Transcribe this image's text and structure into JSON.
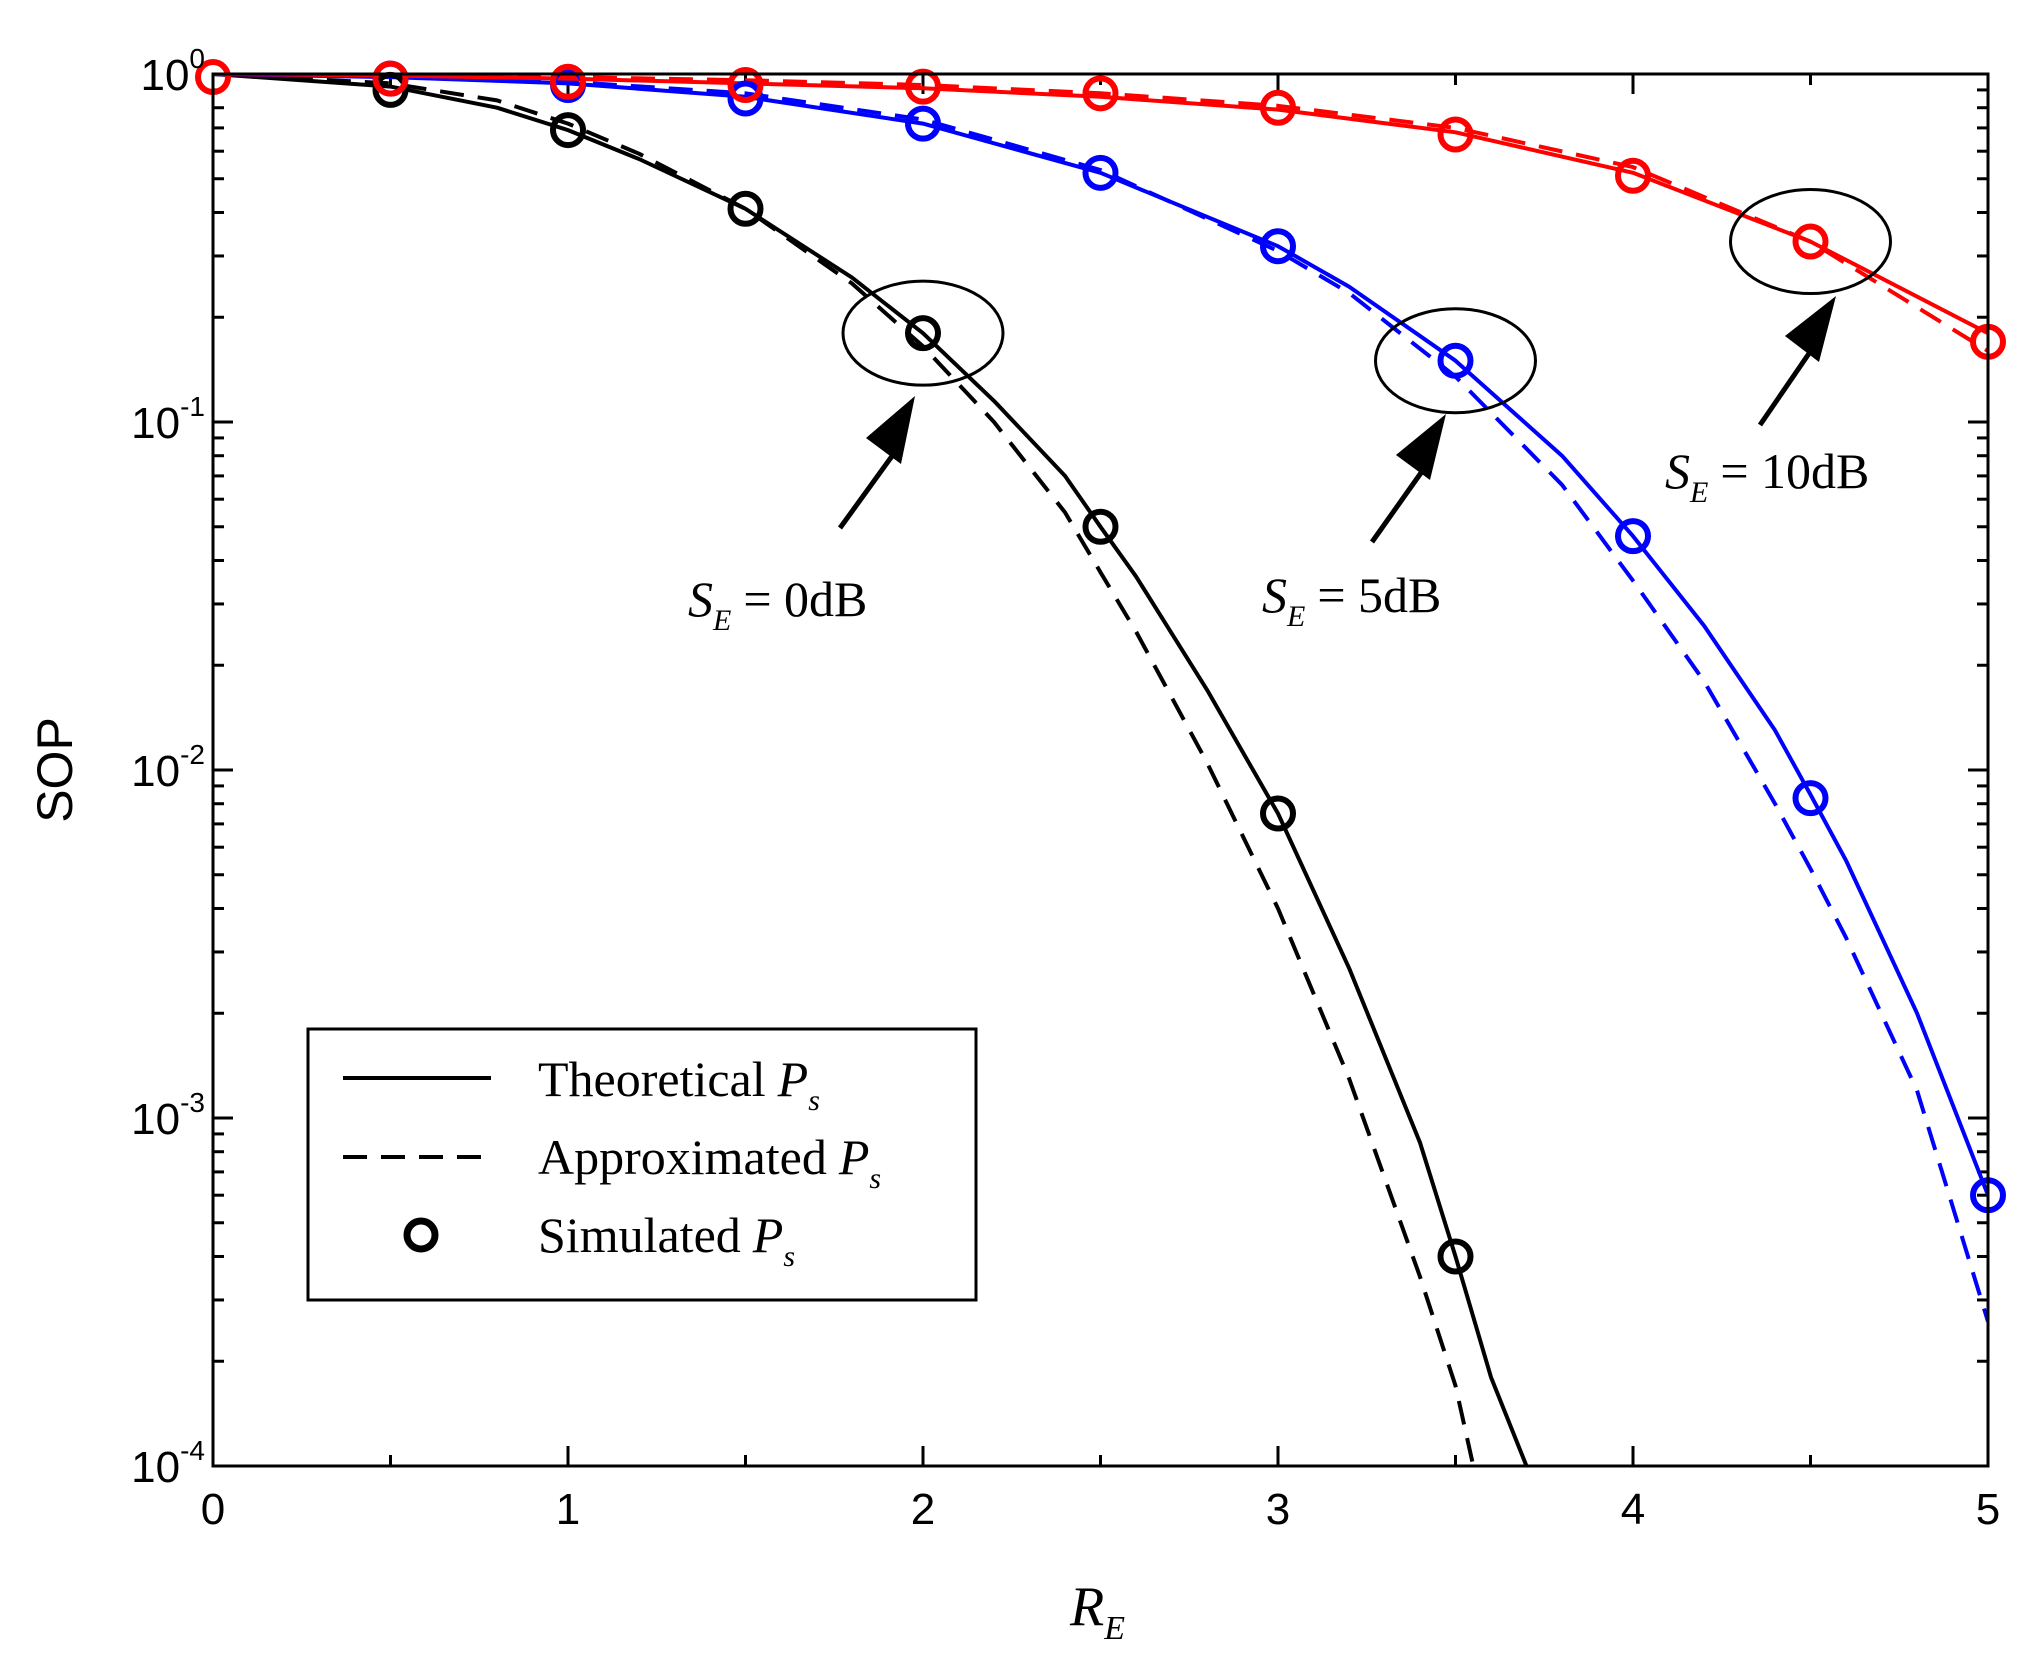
{
  "chart_data": {
    "type": "line",
    "title": "",
    "xlabel": {
      "main": "R",
      "sub": "E"
    },
    "ylabel": "SOP",
    "xlim": [
      0,
      5
    ],
    "ylim": [
      0.0001,
      1
    ],
    "yscale": "log",
    "x_ticks": [
      "0",
      "1",
      "2",
      "3",
      "4",
      "5"
    ],
    "y_ticks": [
      {
        "base": "10",
        "exp": "0",
        "value": 1
      },
      {
        "base": "10",
        "exp": "-1",
        "value": 0.1
      },
      {
        "base": "10",
        "exp": "-2",
        "value": 0.01
      },
      {
        "base": "10",
        "exp": "-3",
        "value": 0.001
      },
      {
        "base": "10",
        "exp": "-4",
        "value": 0.0001
      }
    ],
    "colors": {
      "se0": "#000000",
      "se5": "#0000ff",
      "se10": "#ff0000"
    },
    "series": [
      {
        "name": "Theoretical S_E=0dB",
        "group": "se0",
        "style": "solid",
        "x": [
          0,
          0.5,
          0.8,
          1,
          1.2,
          1.5,
          1.8,
          2,
          2.2,
          2.4,
          2.5,
          2.6,
          2.8,
          3,
          3.2,
          3.4,
          3.5,
          3.6,
          3.7
        ],
        "y": [
          1,
          0.92,
          0.8,
          0.69,
          0.57,
          0.41,
          0.26,
          0.18,
          0.115,
          0.07,
          0.05,
          0.036,
          0.017,
          0.0075,
          0.0027,
          0.00085,
          0.0004,
          0.00018,
          0.0001
        ]
      },
      {
        "name": "Approximated S_E=0dB",
        "group": "se0",
        "style": "dashed",
        "x": [
          0,
          0.5,
          0.8,
          1,
          1.2,
          1.5,
          1.8,
          2,
          2.2,
          2.4,
          2.5,
          2.6,
          2.8,
          3,
          3.2,
          3.4,
          3.5,
          3.55
        ],
        "y": [
          1,
          0.94,
          0.84,
          0.72,
          0.59,
          0.41,
          0.25,
          0.165,
          0.1,
          0.055,
          0.037,
          0.025,
          0.0105,
          0.004,
          0.0013,
          0.00035,
          0.00017,
          0.0001
        ]
      },
      {
        "name": "Simulated S_E=0dB",
        "group": "se0",
        "style": "marker",
        "x": [
          0.5,
          1,
          1.5,
          2,
          2.5,
          3,
          3.5
        ],
        "y": [
          0.9,
          0.69,
          0.41,
          0.18,
          0.05,
          0.0075,
          0.0004
        ]
      },
      {
        "name": "Theoretical S_E=5dB",
        "group": "se5",
        "style": "solid",
        "x": [
          0,
          0.5,
          1,
          1.5,
          2,
          2.5,
          3,
          3.2,
          3.5,
          3.8,
          4,
          4.2,
          4.4,
          4.5,
          4.6,
          4.8,
          5
        ],
        "y": [
          1,
          0.98,
          0.94,
          0.86,
          0.72,
          0.52,
          0.32,
          0.245,
          0.15,
          0.08,
          0.047,
          0.026,
          0.013,
          0.0085,
          0.0055,
          0.002,
          0.0006
        ]
      },
      {
        "name": "Approximated S_E=5dB",
        "group": "se5",
        "style": "dashed",
        "x": [
          0,
          0.5,
          1,
          1.5,
          2,
          2.5,
          3,
          3.2,
          3.5,
          3.8,
          4,
          4.2,
          4.4,
          4.5,
          4.6,
          4.8,
          5
        ],
        "y": [
          1,
          0.985,
          0.95,
          0.88,
          0.74,
          0.53,
          0.31,
          0.235,
          0.135,
          0.066,
          0.035,
          0.018,
          0.008,
          0.0052,
          0.0033,
          0.0012,
          0.00026
        ]
      },
      {
        "name": "Simulated S_E=5dB",
        "group": "se5",
        "style": "marker",
        "x": [
          0.5,
          1,
          1.5,
          2,
          2.5,
          3,
          3.5,
          4,
          4.5,
          5
        ],
        "y": [
          0.97,
          0.93,
          0.85,
          0.72,
          0.52,
          0.32,
          0.15,
          0.047,
          0.0083,
          0.0006
        ]
      },
      {
        "name": "Theoretical S_E=10dB",
        "group": "se10",
        "style": "solid",
        "x": [
          0,
          0.5,
          1,
          1.5,
          2,
          2.5,
          3,
          3.5,
          4,
          4.5,
          5
        ],
        "y": [
          1,
          0.99,
          0.97,
          0.94,
          0.91,
          0.86,
          0.79,
          0.68,
          0.52,
          0.33,
          0.18
        ]
      },
      {
        "name": "Approximated S_E=10dB",
        "group": "se10",
        "style": "dashed",
        "x": [
          0,
          0.5,
          1,
          1.5,
          2,
          2.5,
          3,
          3.5,
          4,
          4.5,
          5
        ],
        "y": [
          1,
          0.995,
          0.98,
          0.96,
          0.93,
          0.88,
          0.81,
          0.7,
          0.54,
          0.33,
          0.16
        ]
      },
      {
        "name": "Simulated S_E=10dB",
        "group": "se10",
        "style": "marker",
        "x": [
          0,
          0.5,
          1,
          1.5,
          2,
          2.5,
          3,
          3.5,
          4,
          4.5,
          5
        ],
        "y": [
          0.98,
          0.97,
          0.95,
          0.93,
          0.92,
          0.88,
          0.8,
          0.67,
          0.51,
          0.33,
          0.17
        ]
      }
    ],
    "legend": {
      "position": "bottom-left",
      "entries": [
        {
          "style": "solid",
          "label": "Theoretical",
          "sym": "P",
          "sub": "s"
        },
        {
          "style": "dashed",
          "label": "Approximated",
          "sym": "P",
          "sub": "s"
        },
        {
          "style": "marker",
          "label": "Simulated",
          "sym": "P",
          "sub": "s"
        }
      ]
    },
    "annotations": [
      {
        "group": "se0",
        "sym": "S",
        "sub": "E",
        "rhs": "= 0dB",
        "ellipse_center": [
          2,
          0.18
        ]
      },
      {
        "group": "se5",
        "sym": "S",
        "sub": "E",
        "rhs": "= 5dB",
        "ellipse_center": [
          3.5,
          0.15
        ]
      },
      {
        "group": "se10",
        "sym": "S",
        "sub": "E",
        "rhs": "= 10dB",
        "ellipse_center": [
          4.5,
          0.33
        ]
      }
    ]
  }
}
